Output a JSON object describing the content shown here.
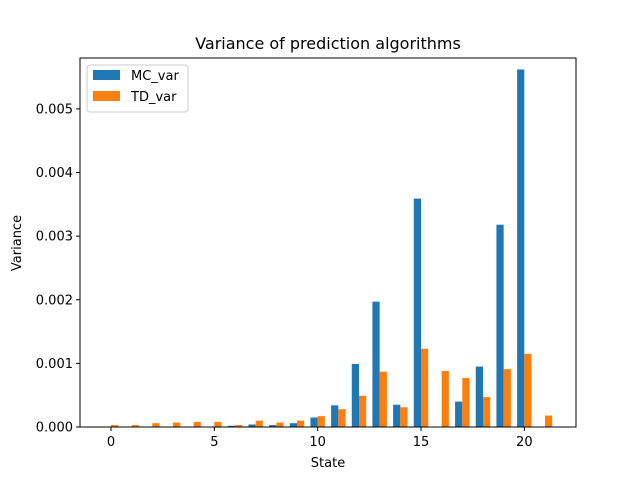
{
  "chart_data": {
    "type": "bar",
    "title": "Variance of prediction algorithms",
    "xlabel": "State",
    "ylabel": "Variance",
    "x": [
      0,
      1,
      2,
      3,
      4,
      5,
      6,
      7,
      8,
      9,
      10,
      11,
      12,
      13,
      14,
      15,
      16,
      17,
      18,
      19,
      20,
      21
    ],
    "xlim": [
      -1.5,
      22.5
    ],
    "ylim": [
      0,
      0.0058
    ],
    "xticks": [
      0,
      5,
      10,
      15,
      20
    ],
    "xtick_labels": [
      "0",
      "5",
      "10",
      "15",
      "20"
    ],
    "yticks": [
      0,
      0.001,
      0.002,
      0.003,
      0.004,
      0.005
    ],
    "ytick_labels": [
      "0.000",
      "0.001",
      "0.002",
      "0.003",
      "0.004",
      "0.005"
    ],
    "legend_position": "top-left",
    "grid": false,
    "series": [
      {
        "name": "MC_var",
        "color": "#1f77b4",
        "values": [
          0,
          0,
          0,
          0,
          0,
          0,
          2e-05,
          4e-05,
          3e-05,
          6e-05,
          0.00015,
          0.00034,
          0.00099,
          0.00197,
          0.00035,
          0.00359,
          0,
          0.0004,
          0.00095,
          0.00318,
          0.00562,
          0
        ]
      },
      {
        "name": "TD_var",
        "color": "#ff7f0e",
        "values": [
          3e-05,
          3e-05,
          6e-05,
          7e-05,
          8e-05,
          8e-05,
          3e-05,
          0.0001,
          7e-05,
          0.0001,
          0.00017,
          0.00028,
          0.00049,
          0.00087,
          0.00031,
          0.00123,
          0.00088,
          0.00077,
          0.00047,
          0.00091,
          0.00115,
          0.00018
        ]
      }
    ]
  }
}
